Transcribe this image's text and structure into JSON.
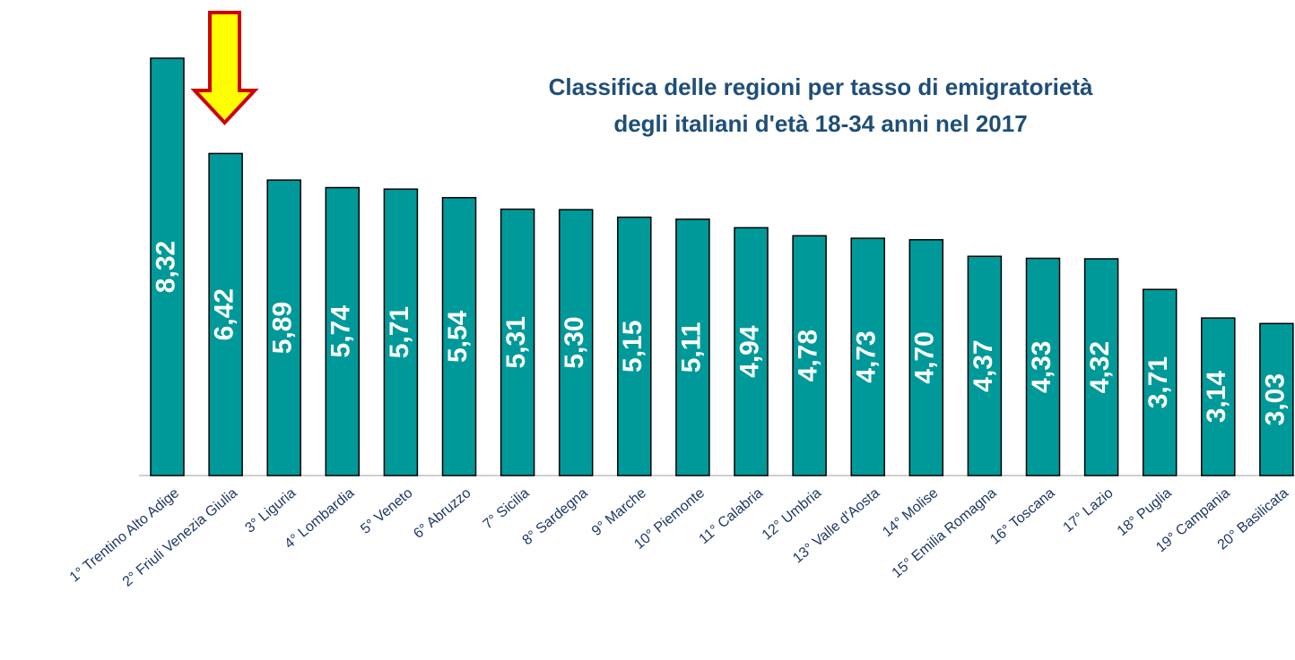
{
  "chart_data": {
    "type": "bar",
    "title": [
      "Classifica delle regioni per tasso di emigratorietà",
      "degli italiani d'età 18-34 anni nel 2017"
    ],
    "categories": [
      "1° Trentino Alto Adige",
      "2° Friuli Venezia Giulia",
      "3° Liguria",
      "4° Lombardia",
      "5° Veneto",
      "6° Abruzzo",
      "7° Sicilia",
      "8° Sardegna",
      "9° Marche",
      "10° Piemonte",
      "11° Calabria",
      "12° Umbria",
      "13° Valle d'Aosta",
      "14° Molise",
      "15° Emilia Romagna",
      "16° Toscana",
      "17° Lazio",
      "18° Puglia",
      "19° Campania",
      "20° Basilicata"
    ],
    "values": [
      8.32,
      6.42,
      5.89,
      5.74,
      5.71,
      5.54,
      5.31,
      5.3,
      5.15,
      5.11,
      4.94,
      4.78,
      4.73,
      4.7,
      4.37,
      4.33,
      4.32,
      3.71,
      3.14,
      3.03
    ],
    "value_labels": [
      "8,32",
      "6,42",
      "5,89",
      "5,74",
      "5,71",
      "5,54",
      "5,31",
      "5,30",
      "5,15",
      "5,11",
      "4,94",
      "4,78",
      "4,73",
      "4,70",
      "4,37",
      "4,33",
      "4,32",
      "3,71",
      "3,14",
      "3,03"
    ],
    "color": "#009999"
  }
}
